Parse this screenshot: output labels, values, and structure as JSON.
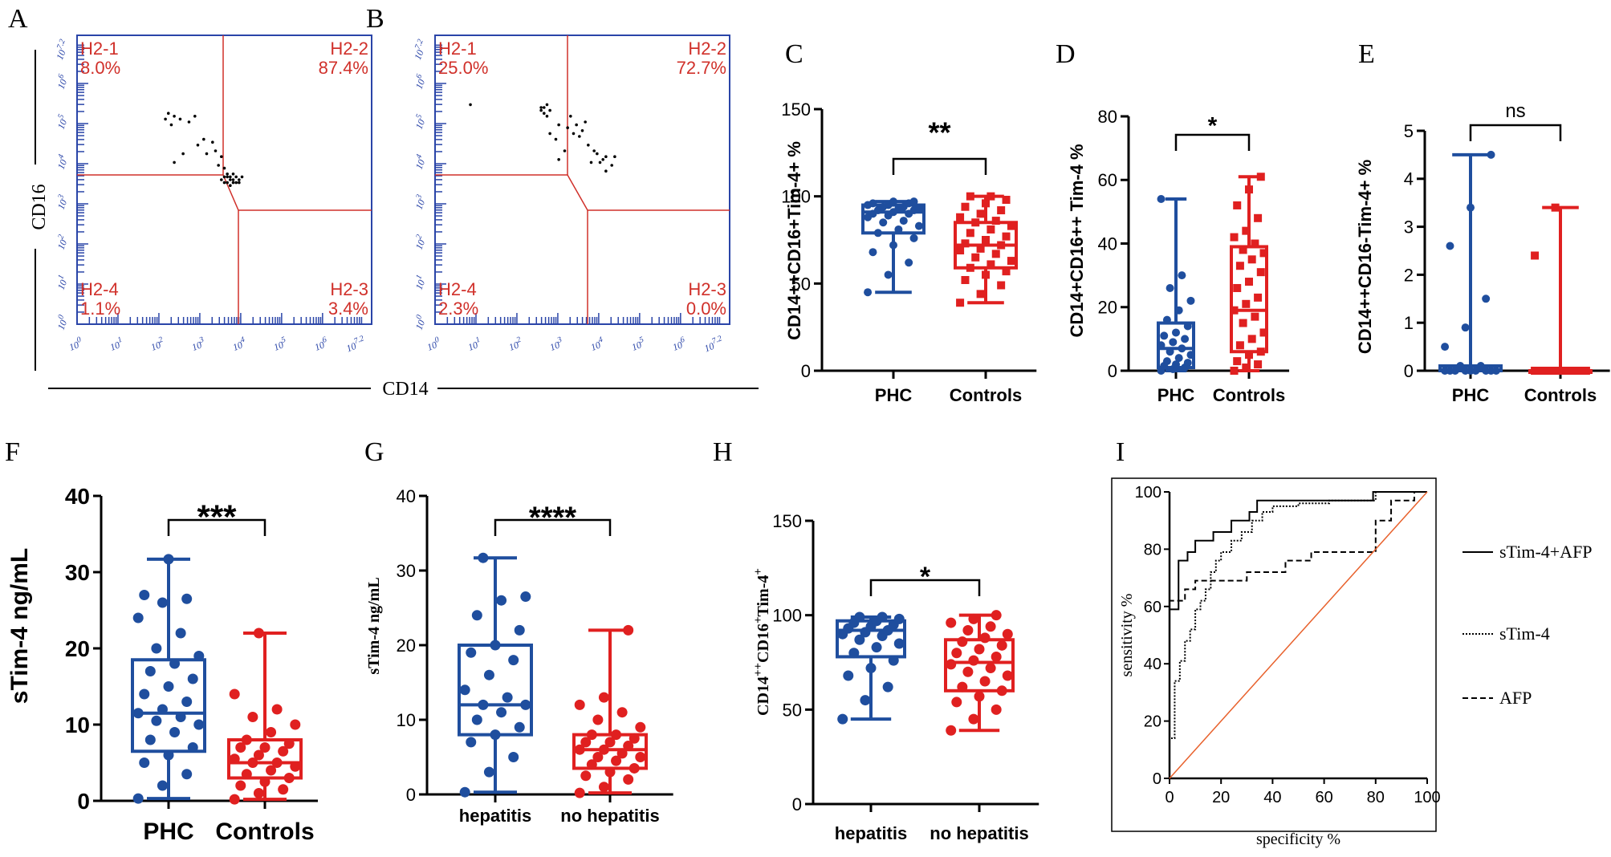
{
  "colors": {
    "blue": "#1f4e9e",
    "red": "#e02020",
    "black": "#000000",
    "axis_blue": "#2a45a8",
    "gate_red": "#d0302a",
    "orange": "#e8612c"
  },
  "flow": {
    "y_axis_label": "CD16",
    "x_axis_label": "CD14",
    "x_ticks": [
      "10^0",
      "10^1",
      "10^2",
      "10^3",
      "10^4",
      "10^5",
      "10^6",
      "10^7.2"
    ],
    "y_ticks": [
      "10^0",
      "10^1",
      "10^2",
      "10^3",
      "10^4",
      "10^5",
      "10^6",
      "10^7.2"
    ],
    "panels": [
      {
        "letter": "A",
        "q1": "H2-1",
        "q1v": "8.0%",
        "q2": "H2-2",
        "q2v": "87.4%",
        "q3": "H2-3",
        "q3v": "3.4%",
        "q4": "H2-4",
        "q4v": "1.1%"
      },
      {
        "letter": "B",
        "q1": "H2-1",
        "q1v": "25.0%",
        "q2": "H2-2",
        "q2v": "72.7%",
        "q3": "H2-3",
        "q3v": "0.0%",
        "q4": "H2-4",
        "q4v": "2.3%"
      }
    ]
  },
  "chart_data": [
    {
      "panel": "C",
      "type": "box",
      "ylabel": "CD14++CD16+Tim-4+  %",
      "ylim": [
        0,
        150
      ],
      "yticks": [
        0,
        50,
        100,
        150
      ],
      "categories": [
        "PHC",
        "Controls"
      ],
      "significance": "**",
      "series": [
        {
          "name": "PHC",
          "min": 45,
          "q1": 79,
          "median": 91,
          "q3": 95,
          "max": 97,
          "points": [
            45,
            55,
            62,
            68,
            72,
            76,
            79,
            81,
            83,
            85,
            86,
            88,
            89,
            90,
            90,
            91,
            92,
            92,
            93,
            93,
            94,
            94,
            95,
            95,
            96,
            96,
            97,
            97
          ]
        },
        {
          "name": "Controls",
          "min": 39,
          "q1": 59,
          "median": 72,
          "q3": 85,
          "max": 100,
          "points": [
            39,
            44,
            49,
            52,
            55,
            57,
            59,
            61,
            63,
            65,
            67,
            69,
            70,
            72,
            73,
            75,
            77,
            79,
            81,
            83,
            85,
            86,
            88,
            90,
            92,
            94,
            96,
            98,
            100,
            100
          ]
        }
      ]
    },
    {
      "panel": "D",
      "type": "box",
      "ylabel": "CD14+CD16++ Tim-4  %",
      "ylim": [
        0,
        80
      ],
      "yticks": [
        0,
        20,
        40,
        60,
        80
      ],
      "categories": [
        "PHC",
        "Controls"
      ],
      "significance": "*",
      "series": [
        {
          "name": "PHC",
          "min": 0,
          "q1": 1,
          "median": 7,
          "q3": 15,
          "max": 54,
          "points": [
            0,
            0.5,
            1,
            1.5,
            2,
            2.5,
            3,
            4,
            5,
            6,
            7,
            8,
            9,
            10,
            11,
            12,
            14,
            16,
            19,
            22,
            26,
            30,
            54
          ]
        },
        {
          "name": "Controls",
          "min": 0,
          "q1": 6,
          "median": 19,
          "q3": 39,
          "max": 61,
          "points": [
            0,
            1,
            2,
            3,
            5,
            6,
            8,
            10,
            12,
            15,
            17,
            19,
            21,
            23,
            26,
            28,
            31,
            33,
            35,
            37,
            38,
            40,
            42,
            44,
            48,
            52,
            57,
            61
          ]
        }
      ]
    },
    {
      "panel": "E",
      "type": "box",
      "ylabel": "CD14++CD16-Tim-4+  %",
      "ylim": [
        0,
        5
      ],
      "yticks": [
        0,
        1,
        2,
        3,
        4,
        5
      ],
      "categories": [
        "PHC",
        "Controls"
      ],
      "significance": "ns",
      "series": [
        {
          "name": "PHC",
          "min": 0,
          "q1": 0,
          "median": 0,
          "q3": 0.1,
          "max": 4.5,
          "points": [
            0,
            0,
            0,
            0,
            0,
            0,
            0,
            0,
            0,
            0.1,
            0.1,
            0.5,
            0.9,
            1.5,
            2.6,
            3.4,
            4.5
          ]
        },
        {
          "name": "Controls",
          "min": 0,
          "q1": 0,
          "median": 0,
          "q3": 0,
          "max": 3.4,
          "points": [
            0,
            0,
            0,
            0,
            0,
            0,
            0,
            0,
            0,
            0,
            0,
            2.4,
            3.4
          ]
        }
      ]
    },
    {
      "panel": "F",
      "type": "box",
      "ylabel": "sTim-4 ng/mL",
      "ylim": [
        0,
        40
      ],
      "yticks": [
        0,
        10,
        20,
        30,
        40
      ],
      "categories": [
        "PHC",
        "Controls"
      ],
      "significance": "***",
      "series": [
        {
          "name": "PHC",
          "min": 0.3,
          "q1": 6.5,
          "median": 11.5,
          "q3": 18.5,
          "max": 31.7,
          "points": [
            0.3,
            2,
            3.5,
            5,
            6,
            7,
            8,
            9,
            10,
            10.5,
            11,
            11.5,
            12,
            13,
            14,
            15,
            16,
            17,
            18,
            19,
            20,
            22,
            24,
            26,
            26.5,
            27,
            31.7
          ]
        },
        {
          "name": "Controls",
          "min": 0.2,
          "q1": 3,
          "median": 5,
          "q3": 8,
          "max": 22,
          "points": [
            0.2,
            1,
            1.5,
            2,
            2.5,
            3,
            3.5,
            4,
            4.5,
            5,
            5,
            5.5,
            6,
            6.5,
            7,
            7,
            7.5,
            8,
            9,
            10,
            11,
            12,
            14,
            22
          ]
        }
      ]
    },
    {
      "panel": "G",
      "type": "box",
      "ylabel": "sTim-4 ng/mL",
      "ylim": [
        0,
        40
      ],
      "yticks": [
        0,
        10,
        20,
        30,
        40
      ],
      "categories": [
        "hepatitis",
        "no hepatitis"
      ],
      "significance": "****",
      "series": [
        {
          "name": "hepatitis",
          "min": 0.3,
          "q1": 8,
          "median": 12,
          "q3": 20,
          "max": 31.7,
          "points": [
            0.3,
            3,
            5,
            7,
            8,
            9,
            10,
            11,
            12,
            12,
            13,
            14,
            16,
            18,
            19,
            20,
            22,
            24,
            26,
            26.5,
            31.7
          ]
        },
        {
          "name": "no hepatitis",
          "min": 0.2,
          "q1": 3.5,
          "median": 6,
          "q3": 8,
          "max": 22,
          "points": [
            0.2,
            1,
            2,
            2.5,
            3,
            3.5,
            4,
            4.5,
            5,
            5,
            5.5,
            6,
            6,
            6.5,
            7,
            7,
            7.5,
            8,
            8,
            9,
            10,
            11,
            12,
            13,
            22
          ]
        }
      ]
    },
    {
      "panel": "H",
      "type": "box",
      "ylabel": "CD14++CD16+Tim-4+",
      "ylim": [
        0,
        150
      ],
      "yticks": [
        0,
        50,
        100,
        150
      ],
      "categories": [
        "hepatitis",
        "no hepatitis"
      ],
      "significance": "*",
      "series": [
        {
          "name": "hepatitis",
          "min": 45,
          "q1": 78,
          "median": 92,
          "q3": 97,
          "max": 99,
          "points": [
            45,
            55,
            62,
            68,
            72,
            76,
            80,
            83,
            85,
            87,
            89,
            90,
            91,
            92,
            93,
            94,
            95,
            96,
            97,
            98,
            99,
            99
          ]
        },
        {
          "name": "no hepatitis",
          "min": 39,
          "q1": 60,
          "median": 75,
          "q3": 87,
          "max": 100,
          "points": [
            39,
            45,
            50,
            54,
            57,
            60,
            62,
            65,
            68,
            70,
            72,
            74,
            76,
            78,
            80,
            82,
            84,
            86,
            88,
            90,
            92,
            94,
            96,
            98,
            100
          ]
        }
      ]
    },
    {
      "panel": "I",
      "type": "line",
      "title": "",
      "xlabel": "specificity  %",
      "ylabel": "sensitivity  %",
      "xlim": [
        0,
        100
      ],
      "ylim": [
        0,
        100
      ],
      "xticks": [
        0,
        20,
        40,
        60,
        80,
        100
      ],
      "yticks": [
        0,
        20,
        40,
        60,
        80,
        100
      ],
      "series": [
        {
          "name": "sTim-4+AFP",
          "style": "solid",
          "x": [
            0,
            0,
            3.5,
            3.5,
            7,
            7,
            10,
            10,
            17,
            17,
            24,
            24,
            31,
            31,
            34,
            34,
            55,
            55,
            79,
            79,
            100
          ],
          "y": [
            0,
            59,
            59,
            76,
            76,
            79,
            79,
            83,
            83,
            86,
            86,
            90,
            90,
            93,
            93,
            97,
            97,
            97,
            97,
            100,
            100
          ]
        },
        {
          "name": "sTim-4",
          "style": "dotted",
          "x": [
            0,
            0,
            2,
            2,
            4,
            4,
            6,
            6,
            8,
            8,
            10,
            10,
            12,
            12,
            14,
            14,
            16,
            16,
            18,
            18,
            20,
            20,
            24,
            24,
            28,
            28,
            32,
            32,
            36,
            36,
            40,
            40,
            50,
            50,
            62,
            62,
            80,
            80,
            100
          ],
          "y": [
            0,
            14,
            14,
            34,
            34,
            41,
            41,
            48,
            48,
            52,
            52,
            59,
            59,
            62,
            62,
            66,
            66,
            72,
            72,
            76,
            76,
            79,
            79,
            83,
            83,
            86,
            86,
            90,
            90,
            93,
            93,
            95,
            95,
            96,
            96,
            97,
            97,
            100,
            100
          ]
        },
        {
          "name": "AFP",
          "style": "dashed",
          "x": [
            0,
            0,
            6,
            6,
            10,
            10,
            30,
            30,
            45,
            45,
            55,
            55,
            62,
            62,
            80,
            80,
            86,
            86,
            95,
            95,
            100
          ],
          "y": [
            0,
            62,
            62,
            66,
            66,
            69,
            69,
            72,
            72,
            76,
            76,
            79,
            79,
            79,
            79,
            90,
            90,
            97,
            97,
            100,
            100
          ]
        },
        {
          "name": "reference",
          "style": "diagonal",
          "x": [
            0,
            100
          ],
          "y": [
            0,
            100
          ]
        }
      ]
    }
  ]
}
